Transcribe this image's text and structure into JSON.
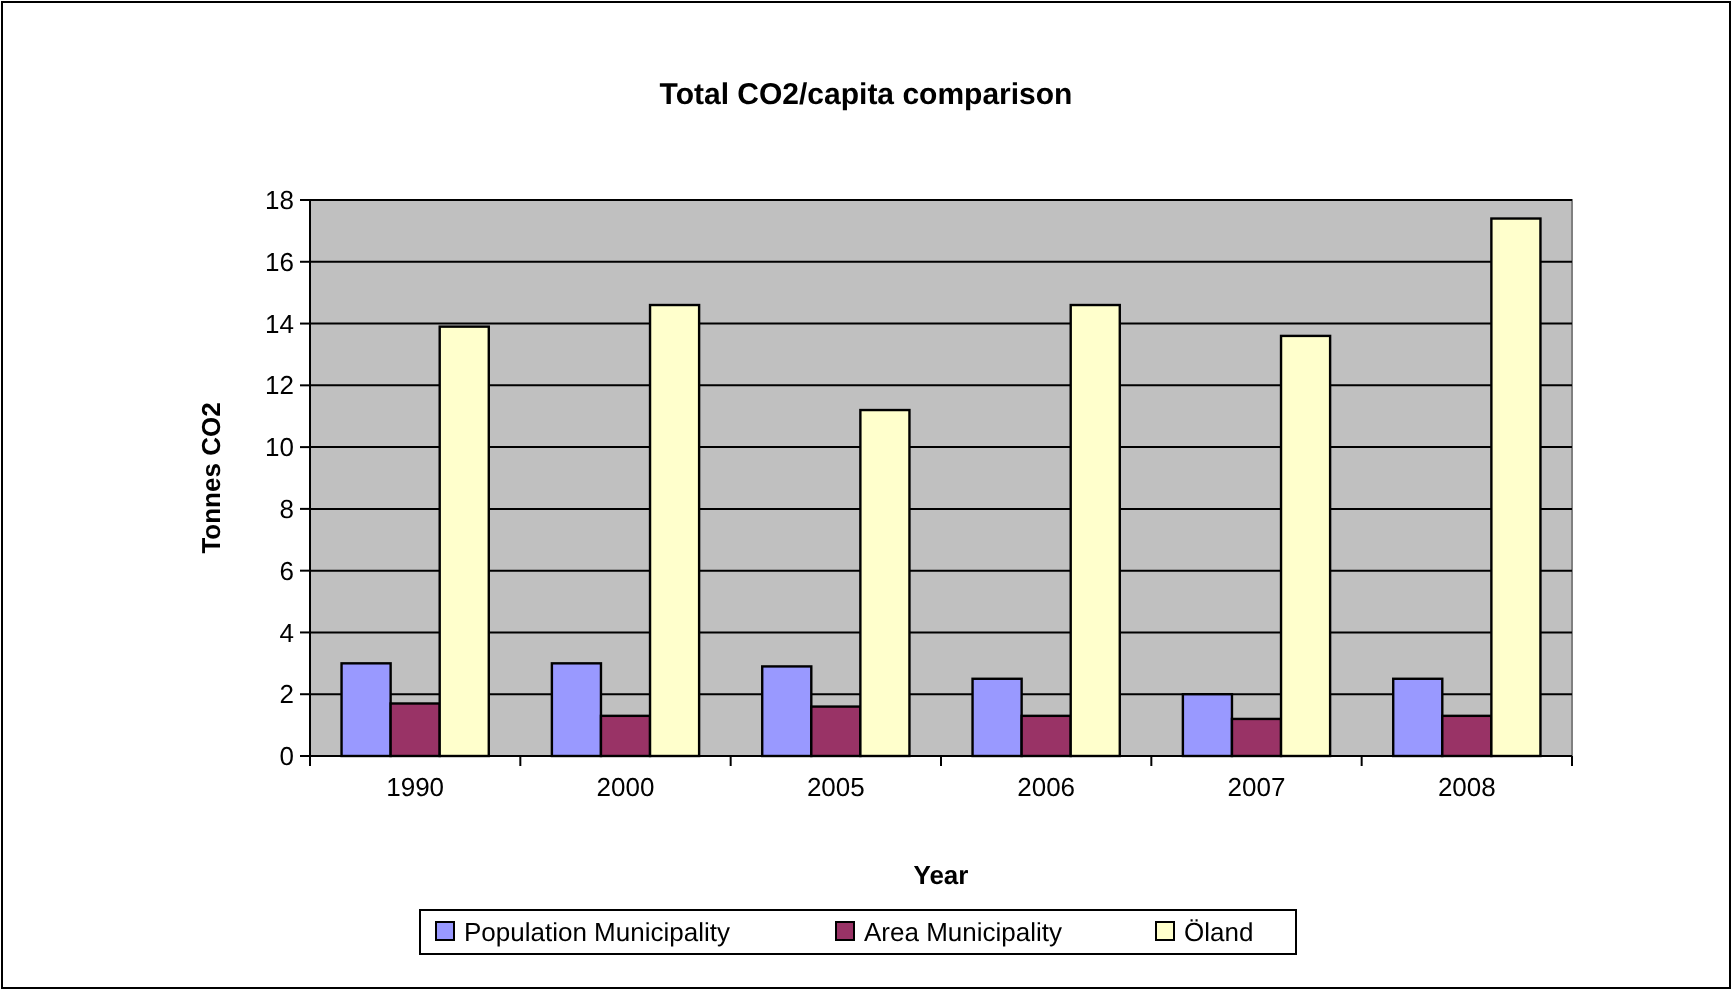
{
  "chart_data": {
    "type": "bar",
    "title": "Total CO2/capita comparison",
    "xlabel": "Year",
    "ylabel": "Tonnes CO2",
    "categories": [
      "1990",
      "2000",
      "2005",
      "2006",
      "2007",
      "2008"
    ],
    "series": [
      {
        "name": "Population Municipality",
        "color": "#9999ff",
        "values": [
          3.0,
          3.0,
          2.9,
          2.5,
          2.0,
          2.5
        ]
      },
      {
        "name": "Area Municipality",
        "color": "#993366",
        "values": [
          1.7,
          1.3,
          1.6,
          1.3,
          1.2,
          1.3
        ]
      },
      {
        "name": "Öland",
        "color": "#ffffcc",
        "values": [
          13.9,
          14.6,
          11.2,
          14.6,
          13.6,
          17.4
        ]
      }
    ],
    "ylim": [
      0,
      18
    ],
    "yticks": [
      0,
      2,
      4,
      6,
      8,
      10,
      12,
      14,
      16,
      18
    ],
    "grid": "y",
    "legend": "bottom"
  }
}
